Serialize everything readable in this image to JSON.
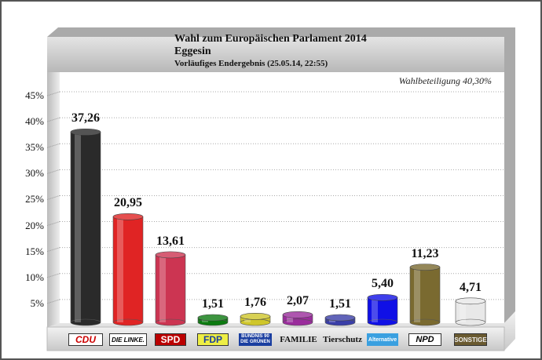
{
  "chart_data": {
    "type": "bar",
    "title": "Wahl zum Europäischen Parlament 2014",
    "subtitle": "Eggesin",
    "subtitle2": "Vorläufiges Endergebnis  (25.05.14, 22:55)",
    "annotation": "Wahlbeteiligung 40,30%",
    "ylim": [
      0,
      45
    ],
    "yticks": [
      "5%",
      "10%",
      "15%",
      "20%",
      "25%",
      "30%",
      "35%",
      "40%",
      "45%"
    ],
    "categories": [
      "CDU",
      "DIE LINKE.",
      "SPD",
      "FDP",
      "GRÜNE",
      "FAMILIE",
      "Tierschutz",
      "Alternative",
      "NPD",
      "SONSTIGE"
    ],
    "values": [
      37.26,
      20.95,
      13.61,
      1.51,
      1.76,
      2.07,
      1.51,
      5.4,
      11.23,
      4.71
    ],
    "value_labels": [
      "37,26",
      "20,95",
      "13,61",
      "1,51",
      "1,76",
      "2,07",
      "1,51",
      "5,40",
      "11,23",
      "4,71"
    ],
    "colors": [
      "#2a2a2a",
      "#e02424",
      "#cc3552",
      "#0c7a10",
      "#cfc62a",
      "#9a2c9c",
      "#3a3ea8",
      "#1010e6",
      "#7a6a30",
      "#e8e8e8"
    ],
    "grid": true
  },
  "legend_labels": [
    "CDU",
    "DIE LINKE.",
    "SPD",
    "FDP",
    "BÜNDNIS 90 DIE GRÜNEN",
    "FAMILIE",
    "Tierschutz",
    "Alternative",
    "NPD",
    "SONSTIGE"
  ]
}
